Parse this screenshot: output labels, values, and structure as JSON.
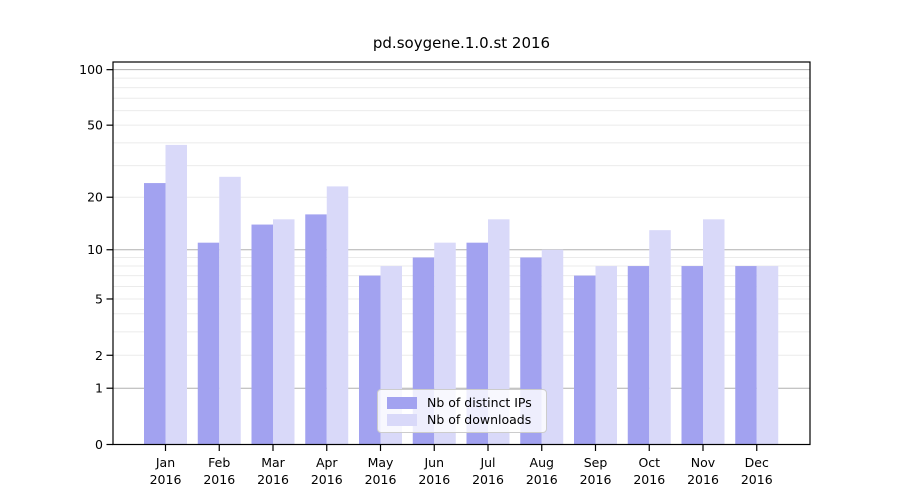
{
  "chart_data": {
    "type": "bar",
    "title": "pd.soygene.1.0.st 2016",
    "categories": [
      "Jan",
      "Feb",
      "Mar",
      "Apr",
      "May",
      "Jun",
      "Jul",
      "Aug",
      "Sep",
      "Oct",
      "Nov",
      "Dec"
    ],
    "x_tick_year": "2016",
    "series": [
      {
        "name": "Nb of distinct IPs",
        "color": "#a2a2f0",
        "values": [
          24,
          11,
          14,
          16,
          7,
          9,
          11,
          9,
          7,
          8,
          8,
          8
        ]
      },
      {
        "name": "Nb of downloads",
        "color": "#d9d9f9",
        "values": [
          39,
          26,
          15,
          23,
          8,
          11,
          15,
          10,
          8,
          13,
          15,
          8
        ]
      }
    ],
    "xlabel": "",
    "ylabel": "",
    "yscale": "log1p",
    "ylim": [
      0,
      110
    ],
    "yticks": [
      0,
      1,
      2,
      5,
      10,
      20,
      50,
      100
    ],
    "major_gridlines": [
      1,
      10,
      100
    ],
    "minor_gridlines": [
      2,
      3,
      4,
      5,
      6,
      7,
      8,
      9,
      20,
      30,
      40,
      50,
      60,
      70,
      80,
      90
    ],
    "grid": true,
    "legend_position": "lower center",
    "colors": {
      "major_grid": "#b0b0b0",
      "minor_grid": "#ebebeb",
      "axis": "#000000",
      "background": "#ffffff"
    }
  }
}
